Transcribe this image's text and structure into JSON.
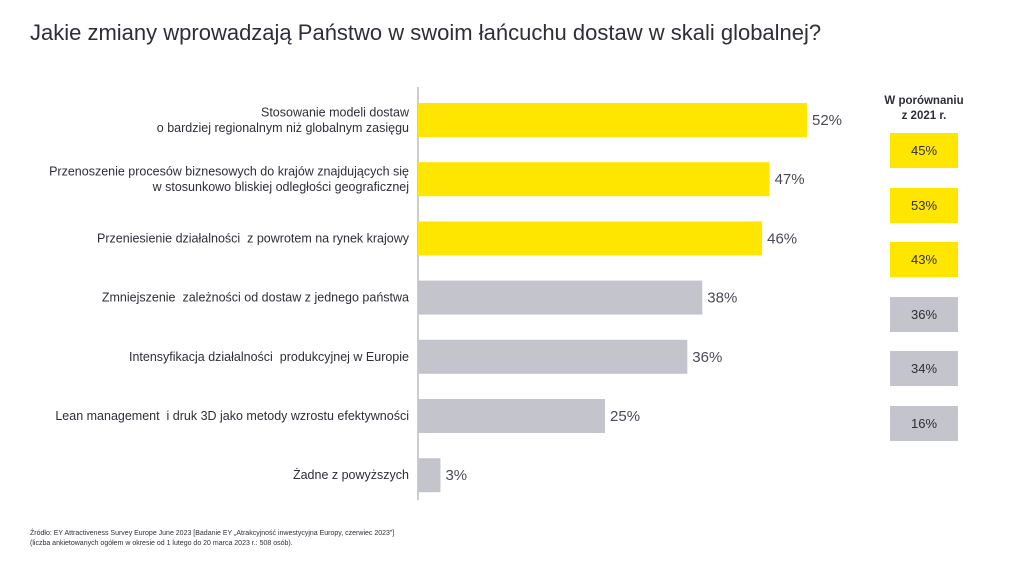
{
  "title": "Jakie zmiany wprowadzają Państwo w swoim łańcuchu dostaw w skali globalnej?",
  "colors": {
    "highlight": "#ffe600",
    "muted": "#c4c4cd",
    "axis": "#9a9aa3"
  },
  "chart_data": {
    "type": "bar",
    "orientation": "horizontal",
    "categories": [
      [
        "Stosowanie modeli dostaw",
        "o bardziej regionalnym niż globalnym zasięgu"
      ],
      [
        "Przenoszenie procesów biznesowych do krajów znajdujących się",
        "w stosunkowo bliskiej odległości geograficznej"
      ],
      [
        "Przeniesienie działalności  z powrotem na rynek krajowy"
      ],
      [
        "Zmniejszenie  zależności od dostaw z jednego państwa"
      ],
      [
        "Intensyfikacja działalności  produkcyjnej w Europie"
      ],
      [
        "Lean management  i druk 3D jako metody wzrostu efektywności"
      ],
      [
        "Żadne z powyższych"
      ]
    ],
    "values": [
      52,
      47,
      46,
      38,
      36,
      25,
      3
    ],
    "value_labels": [
      "52%",
      "47%",
      "46%",
      "38%",
      "36%",
      "25%",
      "3%"
    ],
    "highlighted": [
      true,
      true,
      true,
      false,
      false,
      false,
      false
    ],
    "xlim": [
      0,
      52
    ]
  },
  "comparison": {
    "header_line1": "W porównaniu",
    "header_line2": "z 2021 r.",
    "values": [
      "45%",
      "53%",
      "43%",
      "36%",
      "34%",
      "16%"
    ],
    "highlighted": [
      true,
      true,
      true,
      false,
      false,
      false
    ]
  },
  "source": {
    "line1": "Źródło: EY Attractiveness Survey Europe June 2023 [Badanie EY „Atrakcyjność inwestycyjna Europy, czerwiec 2023”]",
    "line2": "(liczba ankietowanych ogółem w okresie od 1 lutego do 20 marca 2023 r.: 508 osób)."
  }
}
